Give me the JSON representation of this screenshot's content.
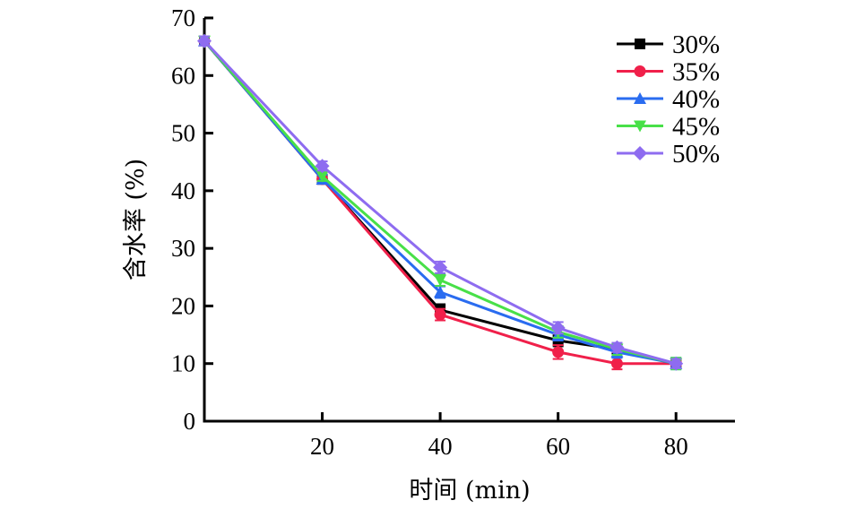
{
  "chart_data": {
    "type": "line",
    "title": "",
    "xlabel": "时间 (min)",
    "ylabel": "含水率 (%)",
    "xlim": [
      0,
      90
    ],
    "ylim": [
      0,
      70
    ],
    "xticks": [
      20,
      40,
      60,
      80
    ],
    "yticks": [
      0,
      10,
      20,
      30,
      40,
      50,
      60,
      70
    ],
    "grid": false,
    "legend_position": "top-right",
    "x": [
      0,
      20,
      40,
      60,
      70,
      80
    ],
    "series": [
      {
        "name": "30%",
        "color": "#000000",
        "marker": "square",
        "values": [
          66,
          42,
          19.3,
          14,
          12.5,
          10
        ],
        "errors": [
          0.8,
          0.8,
          1.0,
          1.0,
          0.8,
          0.5
        ]
      },
      {
        "name": "35%",
        "color": "#f0204a",
        "marker": "circle",
        "values": [
          66,
          42,
          18.5,
          12,
          10,
          10
        ],
        "errors": [
          0.8,
          0.8,
          1.0,
          1.2,
          1.0,
          0.5
        ]
      },
      {
        "name": "40%",
        "color": "#2a6cf0",
        "marker": "triangle-up",
        "values": [
          66,
          42,
          22.4,
          15,
          12,
          10
        ],
        "errors": [
          0.8,
          0.8,
          1.0,
          1.0,
          1.0,
          1.0
        ]
      },
      {
        "name": "45%",
        "color": "#48e048",
        "marker": "triangle-down",
        "values": [
          66,
          42.5,
          24.5,
          15.5,
          12.5,
          10
        ],
        "errors": [
          0.8,
          0.8,
          1.0,
          1.0,
          1.0,
          1.0
        ]
      },
      {
        "name": "50%",
        "color": "#8e6cf0",
        "marker": "diamond",
        "values": [
          66,
          44.3,
          26.7,
          16.2,
          12.8,
          10
        ],
        "errors": [
          0.8,
          0.8,
          1.0,
          1.0,
          0.8,
          0.8
        ]
      }
    ]
  }
}
